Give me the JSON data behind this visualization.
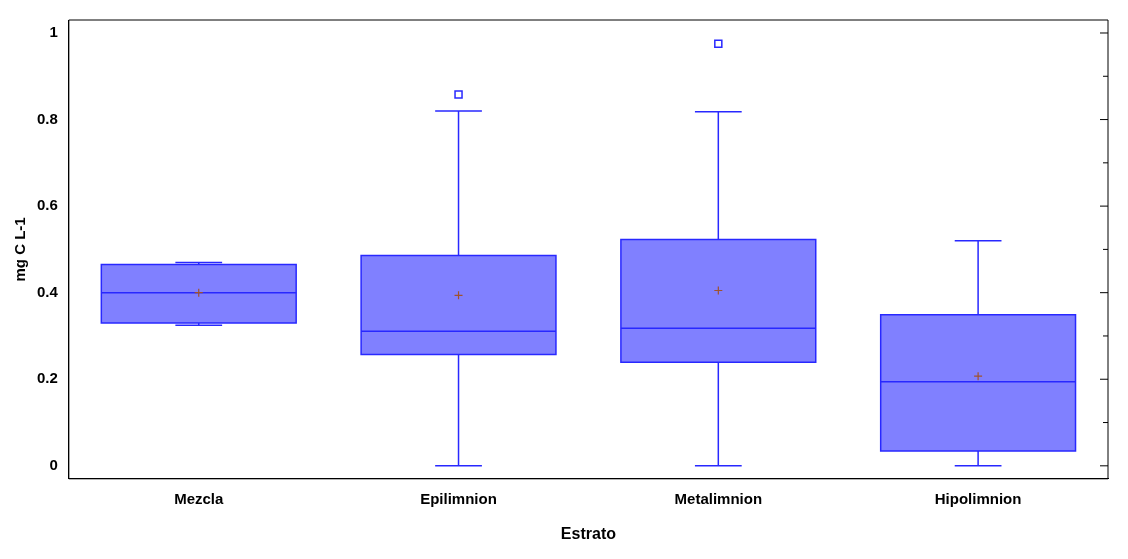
{
  "chart_data": {
    "type": "box",
    "xlabel": "Estrato",
    "ylabel": "mg C L-1",
    "categories": [
      "Mezcla",
      "Epilimnion",
      "Metalimnion",
      "Hipolimnion"
    ],
    "color": "#8080ff",
    "ylim": [
      -0.03,
      1.03
    ],
    "yticks": [
      0,
      {
        "value": 0.1,
        "label": null
      },
      0.2,
      {
        "value": 0.3,
        "label": null
      },
      0.4,
      {
        "value": 0.5,
        "label": null
      },
      0.6,
      {
        "value": 0.7,
        "label": null
      },
      0.8,
      {
        "value": 0.9,
        "label": null
      },
      1
    ],
    "grid": false,
    "legend": false,
    "boxes": [
      {
        "low": 0.325,
        "q1": 0.33,
        "median": 0.4,
        "q3": 0.465,
        "high": 0.47,
        "mean": 0.4
      },
      {
        "low": 0,
        "q1": 0.257,
        "median": 0.311,
        "q3": 0.486,
        "high": 0.82,
        "mean": 0.394,
        "outliers": [
          0.858
        ]
      },
      {
        "low": 0,
        "q1": 0.239,
        "median": 0.318,
        "q3": 0.523,
        "high": 0.818,
        "mean": 0.405,
        "outliers": [
          0.975
        ]
      },
      {
        "low": 0,
        "q1": 0.034,
        "median": 0.194,
        "q3": 0.349,
        "high": 0.52,
        "mean": 0.207
      }
    ]
  }
}
